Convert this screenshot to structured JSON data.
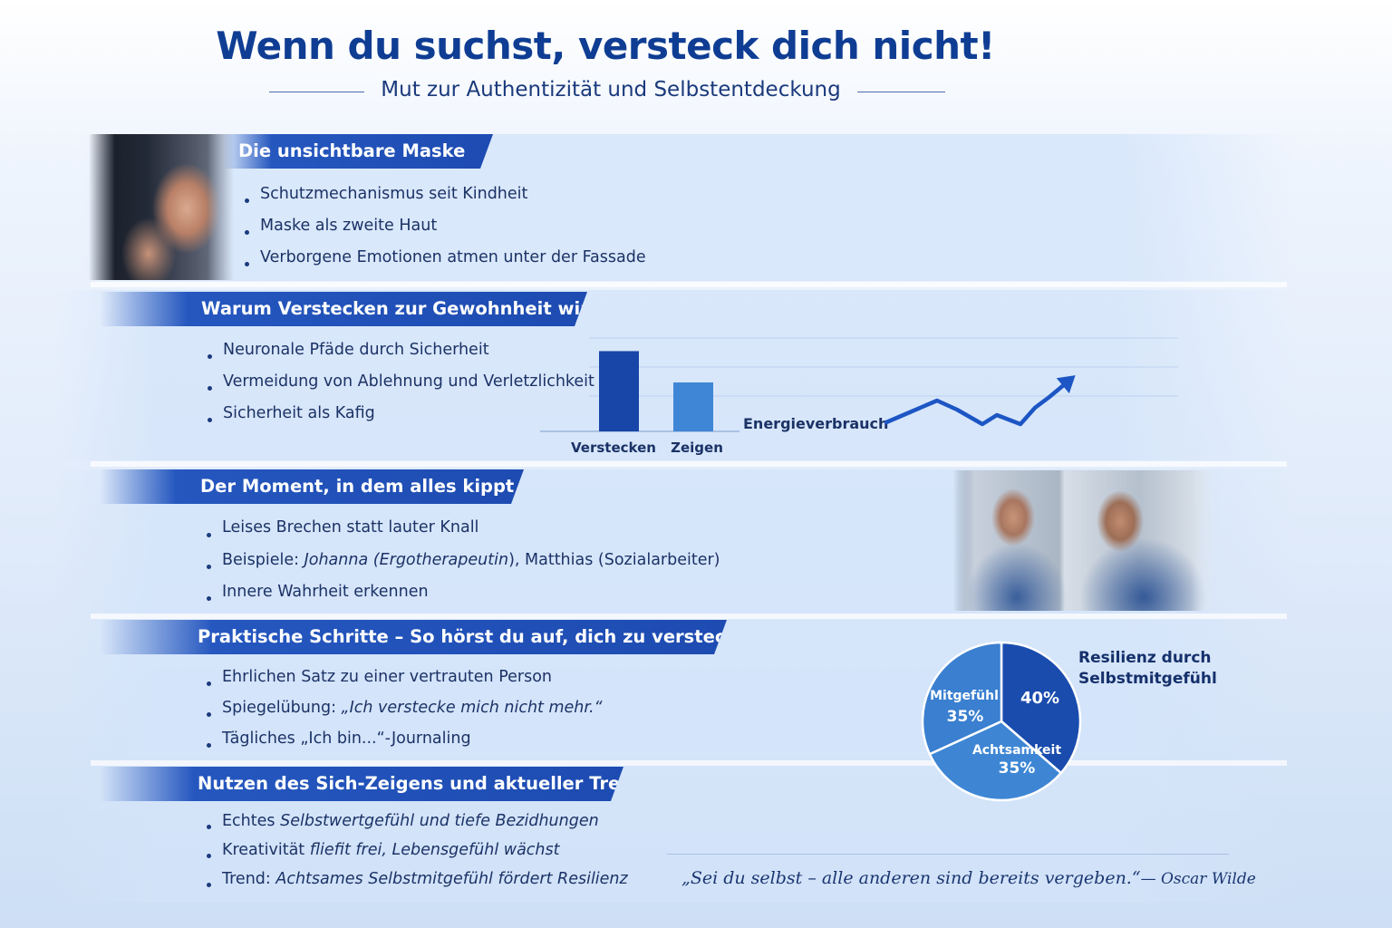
{
  "header": {
    "title": "Wenn du suchst, versteck dich nicht!",
    "subtitle": "Mut zur Authentizität und Selbstentdeckung"
  },
  "sections": [
    {
      "title": "Die unsichtbare Maske",
      "bullets": [
        "Schutzmechanismus seit Kindheit",
        "Maske als zweite Haut",
        "Verborgene Emotionen atmen unter der Fassade"
      ]
    },
    {
      "title": "Warum Verstecken zur Gewohnheit wird",
      "bullets": [
        "Neuronale Pfäde durch Sicherheit",
        "Vermeidung von Ablehnung und Verletzlichkeit",
        "Sicherheit als Kafig"
      ]
    },
    {
      "title": "Der Moment, in dem alles kippt",
      "bullets": [
        "Leises Brechen statt lauter Knall",
        "Beispiele: ",
        "Innere Wahrheit erkennen"
      ],
      "bullet2_parts": [
        "Johanna (",
        "Ergotherapeutin",
        "), Matthias (Sozialarbeiter)"
      ]
    },
    {
      "title": "Praktische Schritte – So hörst du auf, dich zu verstecken",
      "bullets": [
        "Ehrlichen Satz zu einer vertrauten Person",
        "Spiegelübung: ",
        "Tägliches „Ich bin...“-Journaling"
      ],
      "bullet2_quote": "„Ich verstecke mich nicht mehr.“"
    },
    {
      "title": "Nutzen des Sich-Zeigens und aktueller Trend",
      "bullets": [
        "Echtes ",
        "Kreativität ",
        "Trend: "
      ],
      "bullets_italic": [
        "Selbstwertgefühl und tiefe Bezidhungen",
        "fliefit frei, Lebensgefühl wächst",
        "Achtsames Selbstmitgefühl fördert Resilienz"
      ]
    }
  ],
  "chart_data": [
    {
      "type": "bar",
      "categories": [
        "Verstecken",
        "Zeigen"
      ],
      "values": [
        82,
        50
      ],
      "ylim": [
        0,
        100
      ],
      "label": "Energieverbrauch",
      "colors": [
        "#1846a8",
        "#3f86d6"
      ]
    },
    {
      "type": "line",
      "values": [
        10,
        22,
        34,
        24,
        8,
        18,
        8,
        26,
        38,
        58
      ],
      "ylim": [
        0,
        64
      ],
      "color": "#1d56c4"
    },
    {
      "type": "pie",
      "title": "Resilienz durch Selbstmitgefühl",
      "slices": [
        {
          "label": "",
          "value": 40,
          "text": "40%",
          "color": "#1a4cae"
        },
        {
          "label": "Achtsamkeit",
          "value": 35,
          "text": "35%",
          "color": "#3e86d4"
        },
        {
          "label": "Mitgefühl",
          "value": 35,
          "text": "35%",
          "color": "#3a7fd0"
        }
      ]
    }
  ],
  "quote": {
    "text": "„Sei du selbst – alle anderen sind bereits vergeben.“",
    "author": "— Oscar Wilde"
  },
  "colors": {
    "accent": "#1d4bb1",
    "title": "#0f3d93",
    "text": "#1b3266"
  }
}
